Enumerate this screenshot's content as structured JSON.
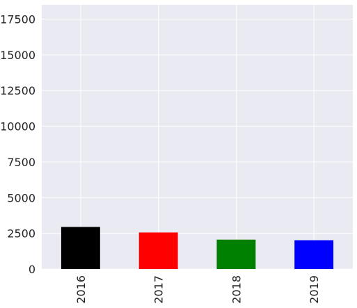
{
  "chart_data": {
    "type": "bar",
    "title": "",
    "xlabel": "",
    "ylabel": "",
    "categories": [
      "2016",
      "2017",
      "2018",
      "2019"
    ],
    "values": [
      2950,
      2560,
      2060,
      2020
    ],
    "colors": [
      "#000000",
      "#ff0000",
      "#008000",
      "#0000ff"
    ],
    "ylim": [
      0,
      18500
    ],
    "yticks": [
      0,
      2500,
      5000,
      7500,
      10000,
      12500,
      15000,
      17500
    ],
    "ytick_labels": [
      "0",
      "2500",
      "5000",
      "7500",
      "10000",
      "12500",
      "15000",
      "17500"
    ],
    "grid": true,
    "legend": "none",
    "x_tick_rotation": "vertical",
    "style": {
      "plot_background": "#eaeaf2",
      "grid_color": "#ffffff"
    }
  }
}
